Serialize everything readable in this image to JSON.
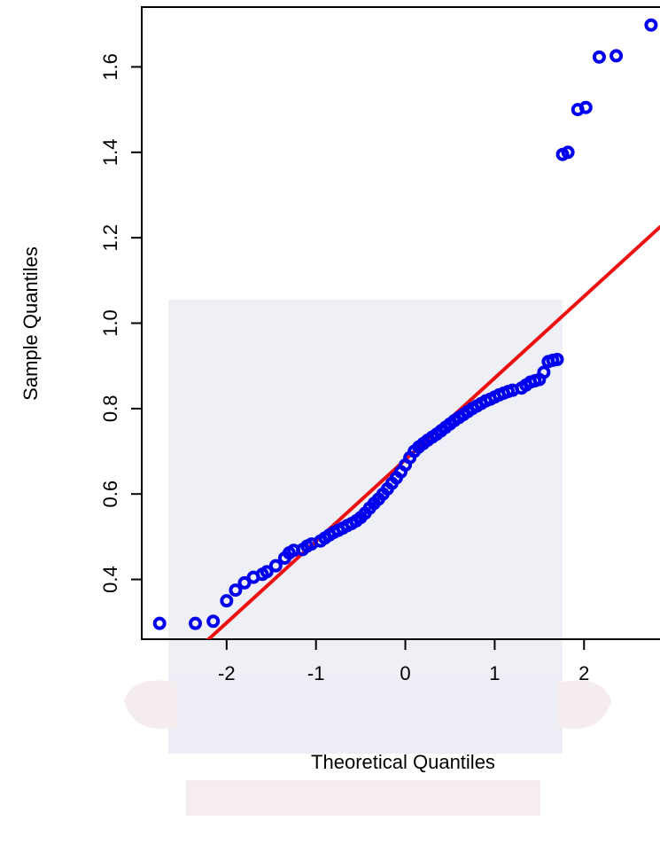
{
  "chart_data": {
    "type": "scatter",
    "title": "",
    "xlabel": "Theoretical Quantiles",
    "ylabel": "Sample Quantiles",
    "xlim": [
      -2.95,
      2.85
    ],
    "ylim": [
      0.26,
      1.74
    ],
    "x_ticks": [
      -2,
      -1,
      0,
      1,
      2
    ],
    "x_tick_labels": [
      "-2",
      "-1",
      "0",
      "1",
      "2"
    ],
    "y_ticks": [
      0.4,
      0.6,
      0.8,
      1.0,
      1.2,
      1.4,
      1.6
    ],
    "y_tick_labels": [
      "0.4",
      "0.6",
      "0.8",
      "1.0",
      "1.2",
      "1.4",
      "1.6"
    ],
    "grid": false,
    "point_color": "#0000ee",
    "line_color": "#ee1111",
    "reference_line": {
      "points": [
        [
          -2.28,
          0.245
        ],
        [
          2.85,
          1.225
        ]
      ]
    },
    "points": [
      [
        -2.75,
        0.297
      ],
      [
        -2.35,
        0.297
      ],
      [
        -2.15,
        0.302
      ],
      [
        -2.0,
        0.35
      ],
      [
        -1.9,
        0.375
      ],
      [
        -1.8,
        0.392
      ],
      [
        -1.7,
        0.405
      ],
      [
        -1.6,
        0.412
      ],
      [
        -1.55,
        0.418
      ],
      [
        -1.45,
        0.432
      ],
      [
        -1.35,
        0.45
      ],
      [
        -1.3,
        0.462
      ],
      [
        -1.25,
        0.468
      ],
      [
        -1.15,
        0.47
      ],
      [
        -1.1,
        0.478
      ],
      [
        -1.05,
        0.483
      ],
      [
        -0.95,
        0.49
      ],
      [
        -0.9,
        0.497
      ],
      [
        -0.85,
        0.504
      ],
      [
        -0.8,
        0.51
      ],
      [
        -0.75,
        0.515
      ],
      [
        -0.7,
        0.52
      ],
      [
        -0.65,
        0.526
      ],
      [
        -0.6,
        0.531
      ],
      [
        -0.55,
        0.537
      ],
      [
        -0.5,
        0.545
      ],
      [
        -0.45,
        0.555
      ],
      [
        -0.4,
        0.567
      ],
      [
        -0.35,
        0.578
      ],
      [
        -0.3,
        0.588
      ],
      [
        -0.25,
        0.6
      ],
      [
        -0.2,
        0.612
      ],
      [
        -0.15,
        0.625
      ],
      [
        -0.1,
        0.638
      ],
      [
        -0.05,
        0.652
      ],
      [
        0.0,
        0.668
      ],
      [
        0.05,
        0.685
      ],
      [
        0.1,
        0.7
      ],
      [
        0.15,
        0.71
      ],
      [
        0.2,
        0.718
      ],
      [
        0.25,
        0.726
      ],
      [
        0.3,
        0.733
      ],
      [
        0.35,
        0.74
      ],
      [
        0.4,
        0.748
      ],
      [
        0.45,
        0.756
      ],
      [
        0.5,
        0.764
      ],
      [
        0.55,
        0.772
      ],
      [
        0.6,
        0.779
      ],
      [
        0.65,
        0.786
      ],
      [
        0.7,
        0.793
      ],
      [
        0.75,
        0.8
      ],
      [
        0.8,
        0.806
      ],
      [
        0.85,
        0.812
      ],
      [
        0.9,
        0.818
      ],
      [
        0.95,
        0.822
      ],
      [
        1.0,
        0.827
      ],
      [
        1.05,
        0.832
      ],
      [
        1.1,
        0.836
      ],
      [
        1.15,
        0.84
      ],
      [
        1.2,
        0.843
      ],
      [
        1.3,
        0.848
      ],
      [
        1.35,
        0.855
      ],
      [
        1.4,
        0.862
      ],
      [
        1.45,
        0.865
      ],
      [
        1.5,
        0.868
      ],
      [
        1.55,
        0.885
      ],
      [
        1.6,
        0.91
      ],
      [
        1.65,
        0.913
      ],
      [
        1.7,
        0.915
      ],
      [
        1.76,
        1.395
      ],
      [
        1.82,
        1.4
      ],
      [
        1.93,
        1.5
      ],
      [
        2.02,
        1.505
      ],
      [
        2.17,
        1.623
      ],
      [
        2.36,
        1.626
      ],
      [
        2.75,
        1.698
      ]
    ]
  }
}
